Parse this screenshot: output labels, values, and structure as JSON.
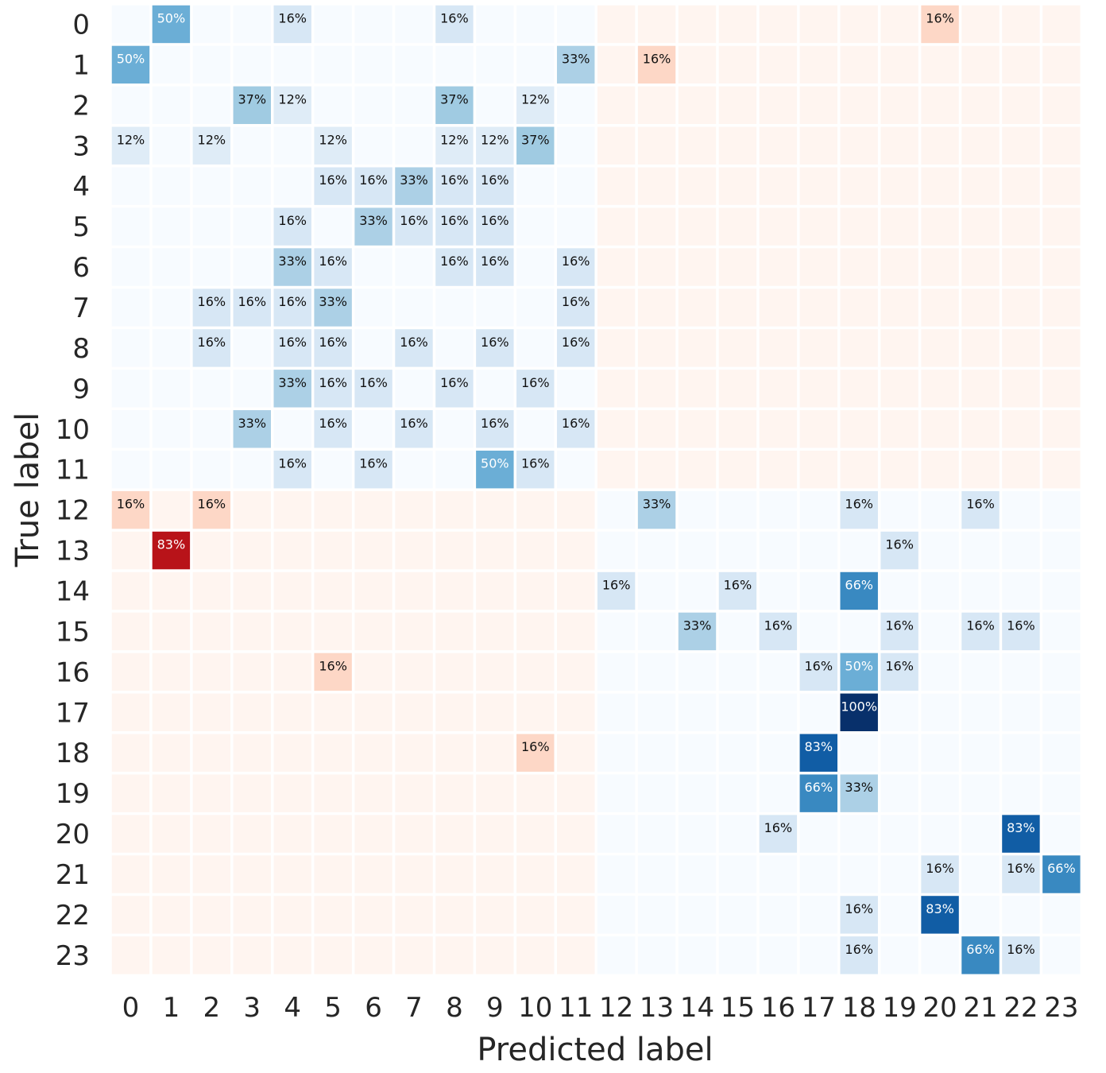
{
  "chart_data": {
    "type": "heatmap",
    "title": "",
    "xlabel": "Predicted label",
    "ylabel": "True label",
    "x_categories": [
      "0",
      "1",
      "2",
      "3",
      "4",
      "5",
      "6",
      "7",
      "8",
      "9",
      "10",
      "11",
      "12",
      "13",
      "14",
      "15",
      "16",
      "17",
      "18",
      "19",
      "20",
      "21",
      "22",
      "23"
    ],
    "y_categories": [
      "0",
      "1",
      "2",
      "3",
      "4",
      "5",
      "6",
      "7",
      "8",
      "9",
      "10",
      "11",
      "12",
      "13",
      "14",
      "15",
      "16",
      "17",
      "18",
      "19",
      "20",
      "21",
      "22",
      "23"
    ],
    "value_format": "percent",
    "color_scheme": "Blues within the 0-11 and 12-23 diagonal blocks, Reds in the off-diagonal blocks",
    "colors": {
      "blue_low": "#f7fbff",
      "blue_high": "#08306b",
      "red_low": "#fff5f0",
      "red_high": "#b2182b"
    },
    "values": [
      [
        0,
        50,
        0,
        0,
        16,
        0,
        0,
        0,
        16,
        0,
        0,
        0,
        0,
        0,
        0,
        0,
        0,
        0,
        0,
        0,
        16,
        0,
        0,
        0
      ],
      [
        50,
        0,
        0,
        0,
        0,
        0,
        0,
        0,
        0,
        0,
        0,
        33,
        0,
        16,
        0,
        0,
        0,
        0,
        0,
        0,
        0,
        0,
        0,
        0
      ],
      [
        0,
        0,
        0,
        37,
        12,
        0,
        0,
        0,
        37,
        0,
        12,
        0,
        0,
        0,
        0,
        0,
        0,
        0,
        0,
        0,
        0,
        0,
        0,
        0
      ],
      [
        12,
        0,
        12,
        0,
        0,
        12,
        0,
        0,
        12,
        12,
        37,
        0,
        0,
        0,
        0,
        0,
        0,
        0,
        0,
        0,
        0,
        0,
        0,
        0
      ],
      [
        0,
        0,
        0,
        0,
        0,
        16,
        16,
        33,
        16,
        16,
        0,
        0,
        0,
        0,
        0,
        0,
        0,
        0,
        0,
        0,
        0,
        0,
        0,
        0
      ],
      [
        0,
        0,
        0,
        0,
        16,
        0,
        33,
        16,
        16,
        16,
        0,
        0,
        0,
        0,
        0,
        0,
        0,
        0,
        0,
        0,
        0,
        0,
        0,
        0
      ],
      [
        0,
        0,
        0,
        0,
        33,
        16,
        0,
        0,
        16,
        16,
        0,
        16,
        0,
        0,
        0,
        0,
        0,
        0,
        0,
        0,
        0,
        0,
        0,
        0
      ],
      [
        0,
        0,
        16,
        16,
        16,
        33,
        0,
        0,
        0,
        0,
        0,
        16,
        0,
        0,
        0,
        0,
        0,
        0,
        0,
        0,
        0,
        0,
        0,
        0
      ],
      [
        0,
        0,
        16,
        0,
        16,
        16,
        0,
        16,
        0,
        16,
        0,
        16,
        0,
        0,
        0,
        0,
        0,
        0,
        0,
        0,
        0,
        0,
        0,
        0
      ],
      [
        0,
        0,
        0,
        0,
        33,
        16,
        16,
        0,
        16,
        0,
        16,
        0,
        0,
        0,
        0,
        0,
        0,
        0,
        0,
        0,
        0,
        0,
        0,
        0
      ],
      [
        0,
        0,
        0,
        33,
        0,
        16,
        0,
        16,
        0,
        16,
        0,
        16,
        0,
        0,
        0,
        0,
        0,
        0,
        0,
        0,
        0,
        0,
        0,
        0
      ],
      [
        0,
        0,
        0,
        0,
        16,
        0,
        16,
        0,
        0,
        50,
        16,
        0,
        0,
        0,
        0,
        0,
        0,
        0,
        0,
        0,
        0,
        0,
        0,
        0
      ],
      [
        16,
        0,
        16,
        0,
        0,
        0,
        0,
        0,
        0,
        0,
        0,
        0,
        0,
        33,
        0,
        0,
        0,
        0,
        16,
        0,
        0,
        16,
        0,
        0
      ],
      [
        0,
        83,
        0,
        0,
        0,
        0,
        0,
        0,
        0,
        0,
        0,
        0,
        0,
        0,
        0,
        0,
        0,
        0,
        0,
        16,
        0,
        0,
        0,
        0
      ],
      [
        0,
        0,
        0,
        0,
        0,
        0,
        0,
        0,
        0,
        0,
        0,
        0,
        16,
        0,
        0,
        16,
        0,
        0,
        66,
        0,
        0,
        0,
        0,
        0
      ],
      [
        0,
        0,
        0,
        0,
        0,
        0,
        0,
        0,
        0,
        0,
        0,
        0,
        0,
        0,
        33,
        0,
        16,
        0,
        0,
        16,
        0,
        16,
        16,
        0
      ],
      [
        0,
        0,
        0,
        0,
        0,
        16,
        0,
        0,
        0,
        0,
        0,
        0,
        0,
        0,
        0,
        0,
        0,
        16,
        50,
        16,
        0,
        0,
        0,
        0
      ],
      [
        0,
        0,
        0,
        0,
        0,
        0,
        0,
        0,
        0,
        0,
        0,
        0,
        0,
        0,
        0,
        0,
        0,
        0,
        100,
        0,
        0,
        0,
        0,
        0
      ],
      [
        0,
        0,
        0,
        0,
        0,
        0,
        0,
        0,
        0,
        0,
        16,
        0,
        0,
        0,
        0,
        0,
        0,
        83,
        0,
        0,
        0,
        0,
        0,
        0
      ],
      [
        0,
        0,
        0,
        0,
        0,
        0,
        0,
        0,
        0,
        0,
        0,
        0,
        0,
        0,
        0,
        0,
        0,
        66,
        33,
        0,
        0,
        0,
        0,
        0
      ],
      [
        0,
        0,
        0,
        0,
        0,
        0,
        0,
        0,
        0,
        0,
        0,
        0,
        0,
        0,
        0,
        0,
        16,
        0,
        0,
        0,
        0,
        0,
        83,
        0
      ],
      [
        0,
        0,
        0,
        0,
        0,
        0,
        0,
        0,
        0,
        0,
        0,
        0,
        0,
        0,
        0,
        0,
        0,
        0,
        0,
        0,
        16,
        0,
        16,
        66
      ],
      [
        0,
        0,
        0,
        0,
        0,
        0,
        0,
        0,
        0,
        0,
        0,
        0,
        0,
        0,
        0,
        0,
        0,
        0,
        16,
        0,
        83,
        0,
        0,
        0
      ],
      [
        0,
        0,
        0,
        0,
        0,
        0,
        0,
        0,
        0,
        0,
        0,
        0,
        0,
        0,
        0,
        0,
        0,
        0,
        16,
        0,
        0,
        66,
        16,
        0
      ]
    ]
  }
}
